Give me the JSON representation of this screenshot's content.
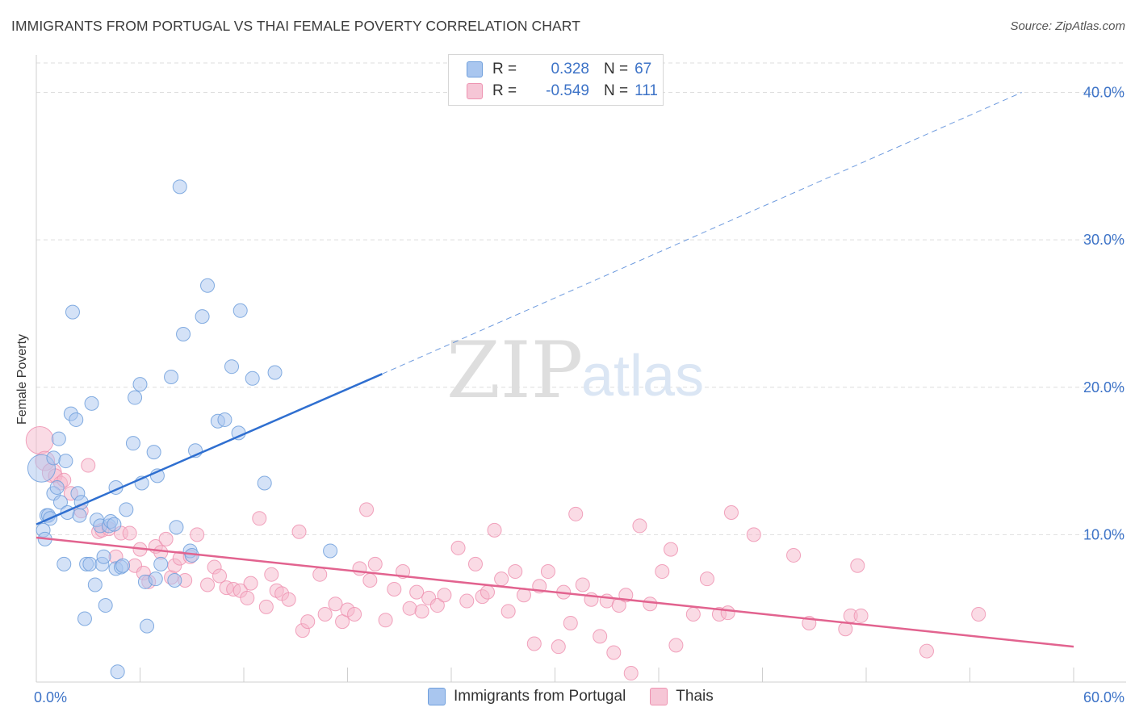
{
  "header": {
    "title": "IMMIGRANTS FROM PORTUGAL VS THAI FEMALE POVERTY CORRELATION CHART",
    "source": "Source: ZipAtlas.com"
  },
  "watermark": {
    "zip": "ZIP",
    "atlas": "atlas"
  },
  "legend": {
    "rows": [
      {
        "r_label": "R =",
        "r_value": "0.328",
        "n_label": "N =",
        "n_value": "67"
      },
      {
        "r_label": "R =",
        "r_value": "-0.549",
        "n_label": "N =",
        "n_value": "111"
      }
    ]
  },
  "bottom_legend": {
    "items": [
      {
        "label": "Immigrants from Portugal"
      },
      {
        "label": "Thais"
      }
    ]
  },
  "colors": {
    "blue_fill": "#a9c6ef",
    "blue_stroke": "#6f9fdc",
    "blue_line": "#2f6fd0",
    "pink_fill": "#f6b8cc",
    "pink_stroke": "#ee93b1",
    "pink_line": "#e2638f",
    "tick_text": "#3d73c7",
    "grid": "#dedede"
  },
  "chart_data": {
    "type": "scatter",
    "title": "IMMIGRANTS FROM PORTUGAL VS THAI FEMALE POVERTY CORRELATION CHART",
    "xlabel": "",
    "ylabel": "Female Poverty",
    "xlim": [
      0,
      60
    ],
    "ylim": [
      0,
      42
    ],
    "x_tick_labels": [
      "0.0%",
      "60.0%"
    ],
    "y_ticks": [
      10,
      20,
      30,
      40
    ],
    "y_tick_labels": [
      "10.0%",
      "20.0%",
      "30.0%",
      "40.0%"
    ],
    "grid": true,
    "series": [
      {
        "name": "Immigrants from Portugal",
        "R": 0.328,
        "N": 67,
        "trend": {
          "x0": 0,
          "y0": 10.7,
          "x1": 20,
          "y1": 20.9,
          "dashed_to_x": 57,
          "dashed_to_y": 40.0
        },
        "points": [
          [
            0.3,
            14.5,
            3
          ],
          [
            0.4,
            10.3,
            1
          ],
          [
            0.5,
            9.7,
            1
          ],
          [
            0.6,
            11.3,
            1
          ],
          [
            0.7,
            11.3,
            1
          ],
          [
            0.8,
            11.1,
            1
          ],
          [
            1.0,
            12.8,
            1
          ],
          [
            1.0,
            15.2,
            1
          ],
          [
            1.2,
            13.2,
            1
          ],
          [
            1.3,
            16.5,
            1
          ],
          [
            1.4,
            12.2,
            1
          ],
          [
            1.7,
            15.0,
            1
          ],
          [
            1.6,
            8.0,
            1
          ],
          [
            1.8,
            11.5,
            1
          ],
          [
            2.0,
            18.2,
            1
          ],
          [
            2.1,
            25.1,
            1
          ],
          [
            2.3,
            17.8,
            1
          ],
          [
            2.4,
            12.8,
            1
          ],
          [
            2.5,
            11.3,
            1
          ],
          [
            2.6,
            12.2,
            1
          ],
          [
            2.8,
            4.3,
            1
          ],
          [
            2.9,
            8.0,
            1
          ],
          [
            3.1,
            8.0,
            1
          ],
          [
            3.2,
            18.9,
            1
          ],
          [
            3.4,
            6.6,
            1
          ],
          [
            3.5,
            11.0,
            1
          ],
          [
            3.7,
            10.6,
            1
          ],
          [
            3.8,
            8.0,
            1
          ],
          [
            3.9,
            8.5,
            1
          ],
          [
            4.0,
            5.2,
            1
          ],
          [
            4.2,
            10.6,
            1
          ],
          [
            4.3,
            10.9,
            1
          ],
          [
            4.5,
            10.7,
            1
          ],
          [
            4.6,
            7.7,
            1
          ],
          [
            4.6,
            13.2,
            1
          ],
          [
            4.7,
            0.7,
            1
          ],
          [
            4.9,
            7.8,
            1
          ],
          [
            5.0,
            7.9,
            1
          ],
          [
            5.2,
            11.7,
            1
          ],
          [
            5.6,
            16.2,
            1
          ],
          [
            5.7,
            19.3,
            1
          ],
          [
            6.0,
            20.2,
            1
          ],
          [
            6.1,
            13.5,
            1
          ],
          [
            6.3,
            6.8,
            1
          ],
          [
            6.4,
            3.8,
            1
          ],
          [
            6.8,
            15.6,
            1
          ],
          [
            6.9,
            7.0,
            1
          ],
          [
            7.0,
            14.0,
            1
          ],
          [
            7.2,
            8.0,
            1
          ],
          [
            7.8,
            20.7,
            1
          ],
          [
            8.0,
            6.9,
            1
          ],
          [
            8.1,
            10.5,
            1
          ],
          [
            8.3,
            33.6,
            1
          ],
          [
            8.5,
            23.6,
            1
          ],
          [
            8.9,
            8.9,
            1
          ],
          [
            9.0,
            8.6,
            1
          ],
          [
            9.2,
            15.7,
            1
          ],
          [
            9.6,
            24.8,
            1
          ],
          [
            9.9,
            26.9,
            1
          ],
          [
            10.5,
            17.7,
            1
          ],
          [
            10.9,
            17.8,
            1
          ],
          [
            11.3,
            21.4,
            1
          ],
          [
            11.7,
            16.9,
            1
          ],
          [
            11.8,
            25.2,
            1
          ],
          [
            12.5,
            20.6,
            1
          ],
          [
            13.2,
            13.5,
            1
          ],
          [
            13.8,
            21.0,
            1
          ],
          [
            17.0,
            8.9,
            1
          ]
        ]
      },
      {
        "name": "Thais",
        "R": -0.549,
        "N": 111,
        "trend": {
          "x0": 0,
          "y0": 9.8,
          "x1": 60,
          "y1": 2.4
        },
        "points": [
          [
            0.2,
            16.4,
            3
          ],
          [
            0.5,
            15.0,
            2
          ],
          [
            0.9,
            14.2,
            2
          ],
          [
            1.1,
            14.0,
            1
          ],
          [
            1.4,
            13.5,
            1
          ],
          [
            1.6,
            13.7,
            1
          ],
          [
            2.0,
            12.8,
            1
          ],
          [
            2.6,
            11.6,
            1
          ],
          [
            3.0,
            14.7,
            1
          ],
          [
            3.6,
            10.2,
            1
          ],
          [
            3.8,
            10.3,
            1
          ],
          [
            4.2,
            10.4,
            1
          ],
          [
            4.6,
            8.5,
            1
          ],
          [
            4.9,
            10.1,
            1
          ],
          [
            5.4,
            10.1,
            1
          ],
          [
            5.7,
            7.9,
            1
          ],
          [
            6.0,
            9.0,
            1
          ],
          [
            6.2,
            7.4,
            1
          ],
          [
            6.5,
            6.8,
            1
          ],
          [
            6.9,
            9.2,
            1
          ],
          [
            7.2,
            8.8,
            1
          ],
          [
            7.5,
            9.7,
            1
          ],
          [
            7.8,
            7.1,
            1
          ],
          [
            8.0,
            7.9,
            1
          ],
          [
            8.3,
            8.4,
            1
          ],
          [
            8.6,
            6.9,
            1
          ],
          [
            8.9,
            8.5,
            1
          ],
          [
            9.3,
            10.0,
            1
          ],
          [
            9.9,
            6.6,
            1
          ],
          [
            10.3,
            7.8,
            1
          ],
          [
            10.6,
            7.2,
            1
          ],
          [
            11.0,
            6.4,
            1
          ],
          [
            11.4,
            6.3,
            1
          ],
          [
            11.8,
            6.2,
            1
          ],
          [
            12.2,
            5.7,
            1
          ],
          [
            12.4,
            6.7,
            1
          ],
          [
            12.9,
            11.1,
            1
          ],
          [
            13.3,
            5.1,
            1
          ],
          [
            13.6,
            7.3,
            1
          ],
          [
            13.9,
            6.2,
            1
          ],
          [
            14.2,
            6.0,
            1
          ],
          [
            14.6,
            5.6,
            1
          ],
          [
            15.2,
            10.2,
            1
          ],
          [
            15.4,
            3.5,
            1
          ],
          [
            15.7,
            4.1,
            1
          ],
          [
            16.4,
            7.3,
            1
          ],
          [
            16.7,
            4.6,
            1
          ],
          [
            17.3,
            5.3,
            1
          ],
          [
            17.7,
            4.1,
            1
          ],
          [
            18.0,
            4.9,
            1
          ],
          [
            18.4,
            4.6,
            1
          ],
          [
            18.7,
            7.7,
            1
          ],
          [
            19.1,
            11.7,
            1
          ],
          [
            19.3,
            6.9,
            1
          ],
          [
            19.6,
            8.0,
            1
          ],
          [
            20.2,
            4.2,
            1
          ],
          [
            20.7,
            6.3,
            1
          ],
          [
            21.2,
            7.5,
            1
          ],
          [
            21.6,
            5.0,
            1
          ],
          [
            22.0,
            6.1,
            1
          ],
          [
            22.3,
            4.8,
            1
          ],
          [
            22.7,
            5.7,
            1
          ],
          [
            23.2,
            5.2,
            1
          ],
          [
            23.6,
            5.9,
            1
          ],
          [
            24.4,
            9.1,
            1
          ],
          [
            24.9,
            5.5,
            1
          ],
          [
            25.4,
            8.0,
            1
          ],
          [
            25.8,
            5.8,
            1
          ],
          [
            26.1,
            6.1,
            1
          ],
          [
            26.5,
            10.3,
            1
          ],
          [
            26.9,
            7.0,
            1
          ],
          [
            27.3,
            4.8,
            1
          ],
          [
            27.7,
            7.5,
            1
          ],
          [
            28.2,
            5.9,
            1
          ],
          [
            28.8,
            2.6,
            1
          ],
          [
            29.1,
            6.5,
            1
          ],
          [
            29.6,
            7.5,
            1
          ],
          [
            30.2,
            2.4,
            1
          ],
          [
            30.5,
            6.1,
            1
          ],
          [
            30.9,
            4.0,
            1
          ],
          [
            31.2,
            11.4,
            1
          ],
          [
            31.6,
            6.6,
            1
          ],
          [
            32.1,
            5.6,
            1
          ],
          [
            32.6,
            3.1,
            1
          ],
          [
            33.0,
            5.5,
            1
          ],
          [
            33.4,
            2.0,
            1
          ],
          [
            33.7,
            5.2,
            1
          ],
          [
            34.1,
            5.9,
            1
          ],
          [
            34.4,
            0.6,
            1
          ],
          [
            34.9,
            10.6,
            1
          ],
          [
            35.5,
            5.3,
            1
          ],
          [
            36.2,
            7.5,
            1
          ],
          [
            36.7,
            9.0,
            1
          ],
          [
            37.0,
            2.5,
            1
          ],
          [
            38.0,
            4.6,
            1
          ],
          [
            38.8,
            7.0,
            1
          ],
          [
            39.5,
            4.6,
            1
          ],
          [
            40.0,
            4.7,
            1
          ],
          [
            40.2,
            11.5,
            1
          ],
          [
            41.5,
            10.0,
            1
          ],
          [
            43.8,
            8.6,
            1
          ],
          [
            44.7,
            4.0,
            1
          ],
          [
            46.8,
            3.6,
            1
          ],
          [
            47.1,
            4.5,
            1
          ],
          [
            47.5,
            7.9,
            1
          ],
          [
            47.7,
            4.5,
            1
          ],
          [
            51.5,
            2.1,
            1
          ],
          [
            54.5,
            4.6,
            1
          ]
        ]
      }
    ]
  }
}
